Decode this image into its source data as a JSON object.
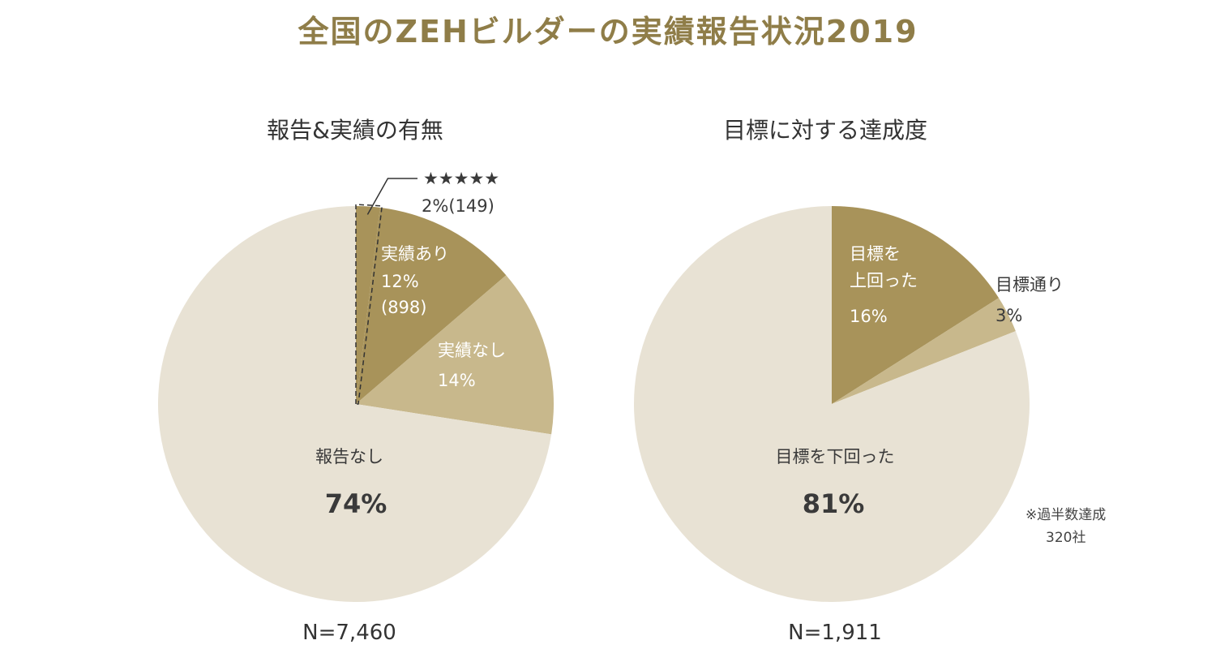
{
  "title": "全国のZEHビルダーの実績報告状況2019",
  "chart_data": [
    {
      "type": "pie",
      "title": "報告&実績の有無",
      "n_label": "N=7,460",
      "slices": [
        {
          "name": "★★★★★",
          "value": 2,
          "label": "2%(149)",
          "color": "#a8935a"
        },
        {
          "name": "実績あり",
          "value": 12,
          "label": "12%",
          "extra": "(898)",
          "color": "#a8935a"
        },
        {
          "name": "実績なし",
          "value": 14,
          "label": "14%",
          "color": "#c8b88c"
        },
        {
          "name": "報告なし",
          "value": 74,
          "label": "74%",
          "color": "#e8e2d4"
        }
      ]
    },
    {
      "type": "pie",
      "title": "目標に対する達成度",
      "n_label": "N=1,911",
      "note": [
        "※過半数達成",
        "320社"
      ],
      "slices": [
        {
          "name": "目標を上回った",
          "name_lines": [
            "目標を",
            "上回った"
          ],
          "value": 16,
          "label": "16%",
          "color": "#a8935a"
        },
        {
          "name": "目標通り",
          "value": 3,
          "label": "3%",
          "color": "#c8b88c"
        },
        {
          "name": "目標を下回った",
          "value": 81,
          "label": "81%",
          "color": "#e8e2d4"
        }
      ]
    }
  ]
}
